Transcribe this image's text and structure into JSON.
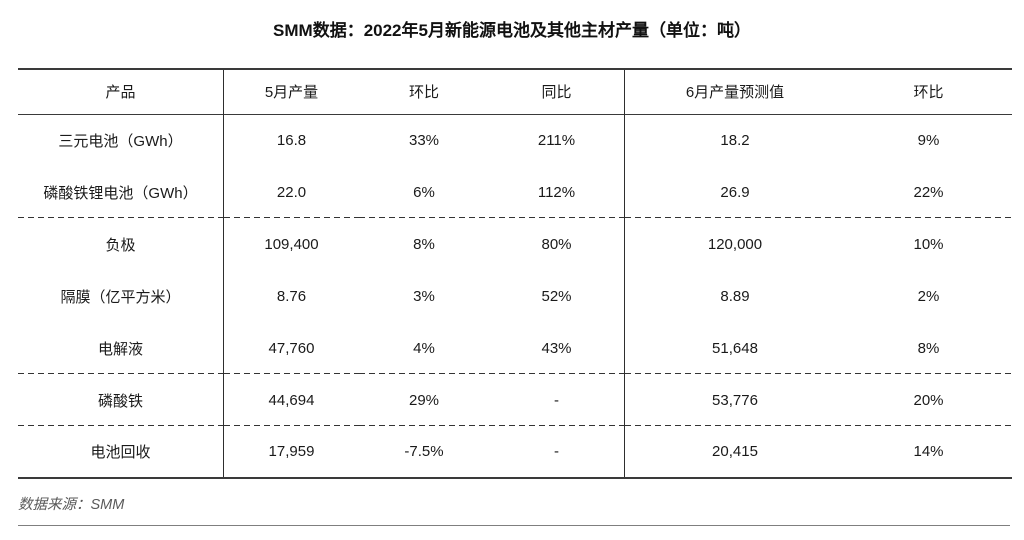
{
  "chart_data": {
    "type": "table",
    "title": "SMM数据：2022年5月新能源电池及其他主材产量（单位：吨）",
    "source_note": "数据来源：SMM",
    "columns": [
      "产品",
      "5月产量",
      "环比",
      "同比",
      "6月产量预测值",
      "环比"
    ],
    "row_groups": [
      [
        [
          "三元电池（GWh）",
          "16.8",
          "33%",
          "211%",
          "18.2",
          "9%"
        ],
        [
          "磷酸铁锂电池（GWh）",
          "22.0",
          "6%",
          "112%",
          "26.9",
          "22%"
        ]
      ],
      [
        [
          "负极",
          "109,400",
          "8%",
          "80%",
          "120,000",
          "10%"
        ],
        [
          "隔膜（亿平方米）",
          "8.76",
          "3%",
          "52%",
          "8.89",
          "2%"
        ],
        [
          "电解液",
          "47,760",
          "4%",
          "43%",
          "51,648",
          "8%"
        ]
      ],
      [
        [
          "磷酸铁",
          "44,694",
          "29%",
          "-",
          "53,776",
          "20%"
        ]
      ],
      [
        [
          "电池回收",
          "17,959",
          "-7.5%",
          "-",
          "20,415",
          "14%"
        ]
      ]
    ]
  }
}
